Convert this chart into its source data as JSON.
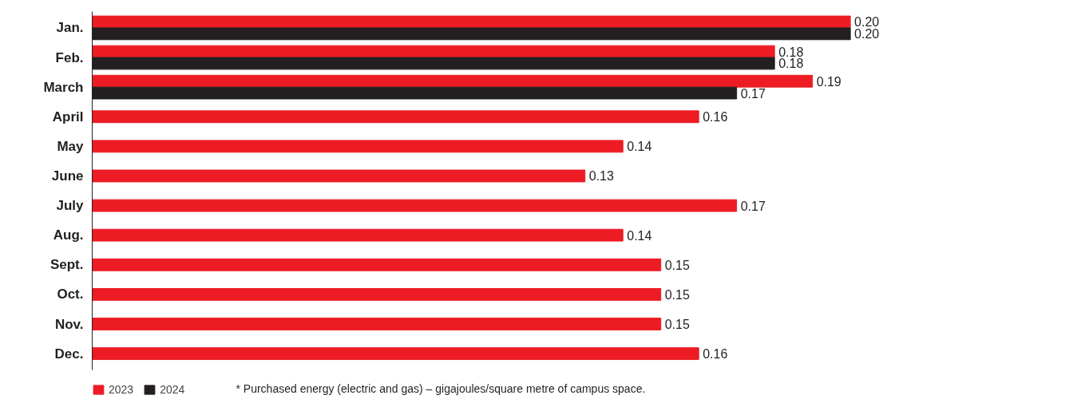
{
  "chart_data": {
    "type": "bar",
    "orientation": "horizontal",
    "categories": [
      "Jan.",
      "Feb.",
      "March",
      "April",
      "May",
      "June",
      "July",
      "Aug.",
      "Sept.",
      "Oct.",
      "Nov.",
      "Dec."
    ],
    "series": [
      {
        "name": "2023",
        "color": "#ed1c24",
        "values": [
          0.2,
          0.18,
          0.19,
          0.16,
          0.14,
          0.13,
          0.17,
          0.14,
          0.15,
          0.15,
          0.15,
          0.16
        ],
        "value_labels": [
          "0.20",
          "0.18",
          "0.19",
          "0.16",
          "0.14",
          "0.13",
          "0.17",
          "0.14",
          "0.15",
          "0.15",
          "0.15",
          "0.16"
        ]
      },
      {
        "name": "2024",
        "color": "#231f20",
        "values": [
          0.2,
          0.18,
          0.17,
          null,
          null,
          null,
          null,
          null,
          null,
          null,
          null,
          null
        ],
        "value_labels": [
          "0.20",
          "0.18",
          "0.17",
          null,
          null,
          null,
          null,
          null,
          null,
          null,
          null,
          null
        ]
      }
    ],
    "legend": "bottom left",
    "grid": false,
    "annotations": [
      "* Purchased energy (electric and gas) – gigajoules/square metre of campus space."
    ]
  }
}
